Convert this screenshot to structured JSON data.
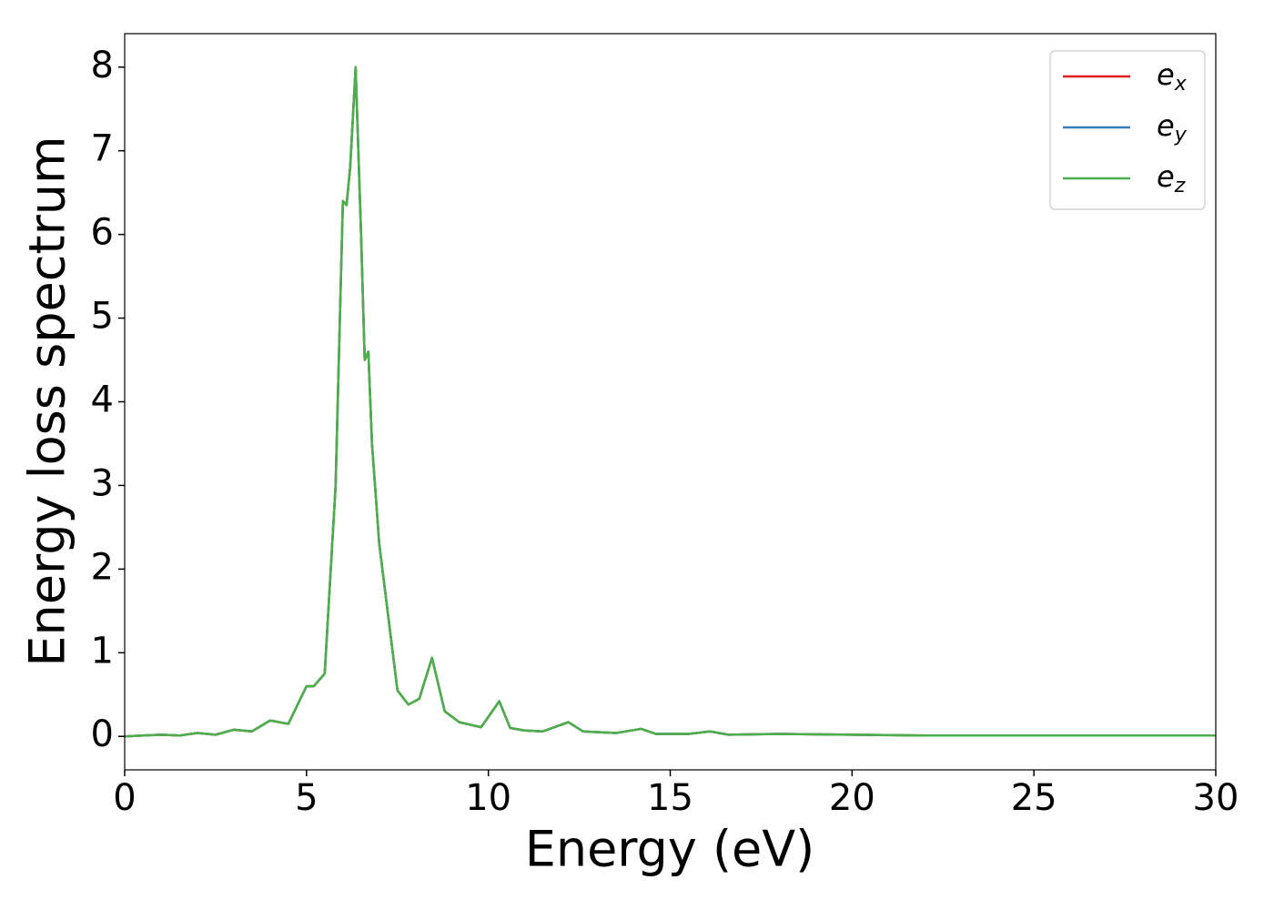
{
  "chart_data": {
    "type": "line",
    "xlabel": "Energy (eV)",
    "ylabel": "Energy loss spectrum",
    "x": [
      0,
      0.5,
      1,
      1.5,
      2,
      2.5,
      3,
      3.5,
      4,
      4.5,
      5,
      5.2,
      5.5,
      5.8,
      6,
      6.1,
      6.2,
      6.35,
      6.5,
      6.6,
      6.7,
      6.8,
      7,
      7.2,
      7.5,
      7.8,
      8.1,
      8.45,
      8.8,
      9.2,
      9.8,
      10.3,
      10.6,
      11,
      11.5,
      12.2,
      12.6,
      13.5,
      14.2,
      14.6,
      15.5,
      16.1,
      16.6,
      18,
      20,
      22,
      25,
      30
    ],
    "series": [
      {
        "name": "ex",
        "color": "#e41a1c",
        "values": [
          0.0,
          0.01,
          0.02,
          0.01,
          0.04,
          0.02,
          0.08,
          0.06,
          0.19,
          0.15,
          0.6,
          0.6,
          0.75,
          3.0,
          6.4,
          6.35,
          6.8,
          8.0,
          6.0,
          4.5,
          4.6,
          3.5,
          2.3,
          1.6,
          0.55,
          0.38,
          0.45,
          0.94,
          0.3,
          0.17,
          0.11,
          0.42,
          0.1,
          0.07,
          0.06,
          0.17,
          0.06,
          0.04,
          0.09,
          0.03,
          0.03,
          0.06,
          0.02,
          0.03,
          0.02,
          0.01,
          0.01,
          0.01
        ]
      },
      {
        "name": "ey",
        "color": "#377eb8",
        "values": [
          0.0,
          0.01,
          0.02,
          0.01,
          0.04,
          0.02,
          0.08,
          0.06,
          0.19,
          0.15,
          0.6,
          0.6,
          0.75,
          3.0,
          6.4,
          6.35,
          6.8,
          8.0,
          6.0,
          4.5,
          4.6,
          3.5,
          2.3,
          1.6,
          0.55,
          0.38,
          0.45,
          0.94,
          0.3,
          0.17,
          0.11,
          0.42,
          0.1,
          0.07,
          0.06,
          0.17,
          0.06,
          0.04,
          0.09,
          0.03,
          0.03,
          0.06,
          0.02,
          0.03,
          0.02,
          0.01,
          0.01,
          0.01
        ]
      },
      {
        "name": "ez",
        "color": "#4daf4a",
        "values": [
          0.0,
          0.01,
          0.02,
          0.01,
          0.04,
          0.02,
          0.08,
          0.06,
          0.19,
          0.15,
          0.6,
          0.6,
          0.75,
          3.0,
          6.4,
          6.35,
          6.8,
          8.0,
          6.0,
          4.5,
          4.6,
          3.5,
          2.3,
          1.6,
          0.55,
          0.38,
          0.45,
          0.94,
          0.3,
          0.17,
          0.11,
          0.42,
          0.1,
          0.07,
          0.06,
          0.17,
          0.06,
          0.04,
          0.09,
          0.03,
          0.03,
          0.06,
          0.02,
          0.03,
          0.02,
          0.01,
          0.01,
          0.01
        ]
      }
    ],
    "xlim": [
      0,
      30
    ],
    "xticks": [
      0,
      5,
      10,
      15,
      20,
      25,
      30
    ],
    "ylim": [
      -0.4,
      8.4
    ],
    "yticks": [
      0,
      1,
      2,
      3,
      4,
      5,
      6,
      7,
      8
    ],
    "grid": false,
    "legend": "upper right"
  }
}
